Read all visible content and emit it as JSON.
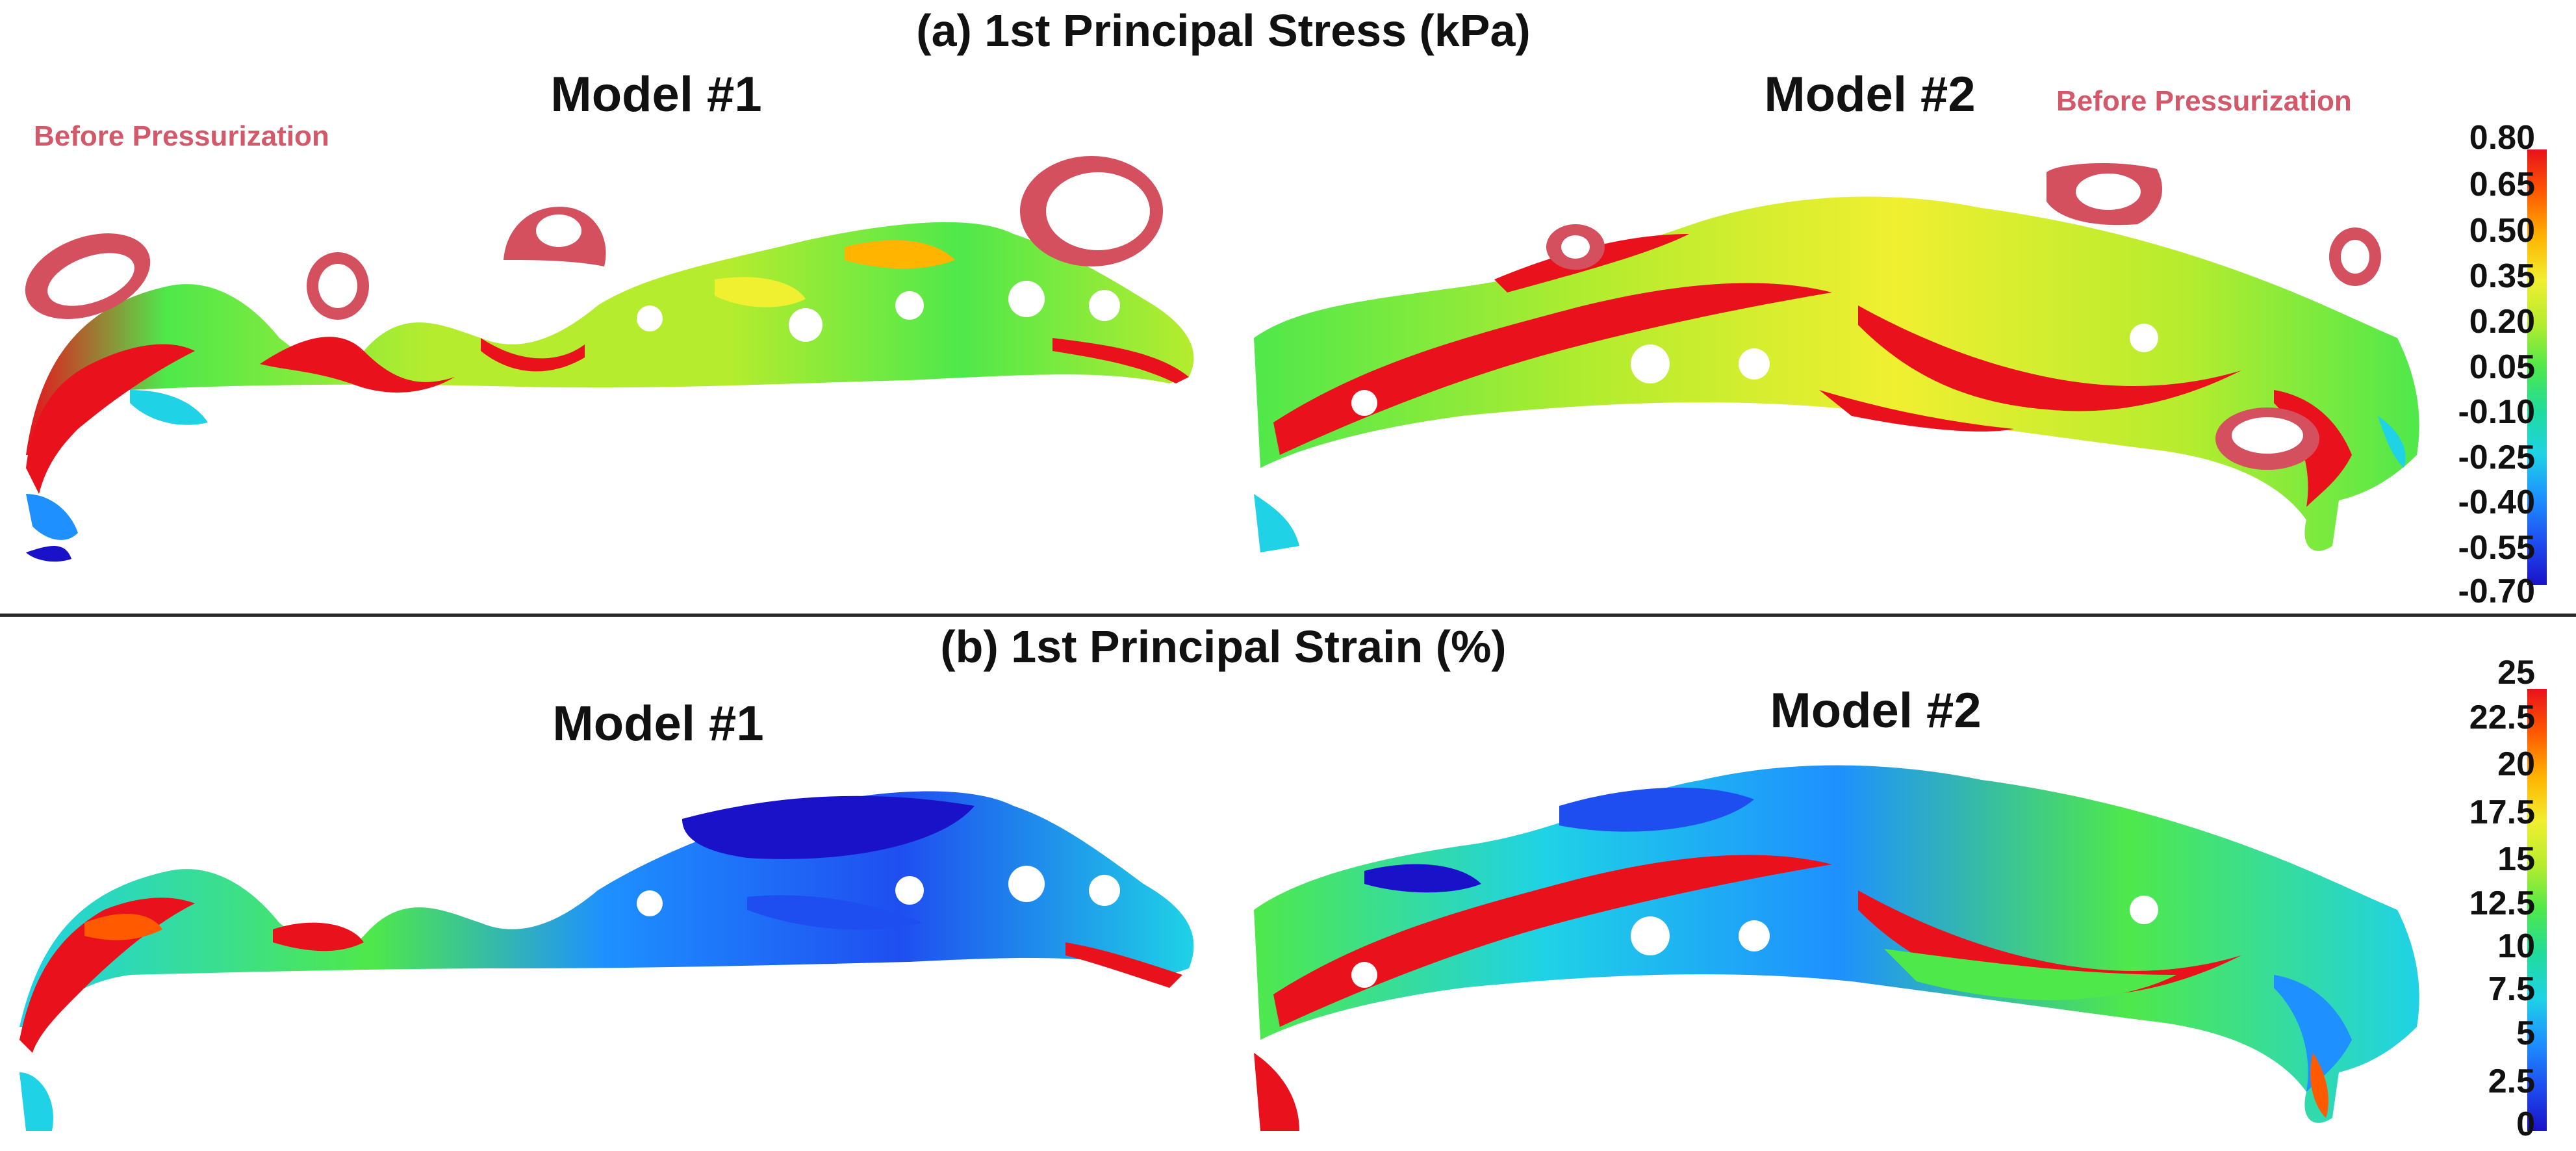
{
  "panel_a": {
    "title": "(a) 1st Principal Stress (kPa)",
    "model1": "Model #1",
    "model2": "Model #2",
    "before_label_1": "Before Pressurization",
    "before_label_2": "Before Pressurization",
    "colorbar_ticks": [
      "0.80",
      "0.65",
      "0.50",
      "0.35",
      "0.20",
      "0.05",
      "-0.10",
      "-0.25",
      "-0.40",
      "-0.55",
      "-0.70"
    ]
  },
  "panel_b": {
    "title": "(b) 1st Principal Strain (%)",
    "model1": "Model #1",
    "model2": "Model #2",
    "colorbar_ticks": [
      "25",
      "22.5",
      "20",
      "17.5",
      "15",
      "12.5",
      "10",
      "7.5",
      "5",
      "2.5",
      "0"
    ]
  },
  "colors": {
    "jet": [
      "#e8111c",
      "#ff5a00",
      "#ffb400",
      "#f0ef30",
      "#b6ec2e",
      "#4fe84b",
      "#1fdc9c",
      "#1fd2e6",
      "#1e90ff",
      "#1f4ef0",
      "#1a12c8"
    ],
    "pre_shape": "#d4505f",
    "before_text": "#d2586a"
  }
}
